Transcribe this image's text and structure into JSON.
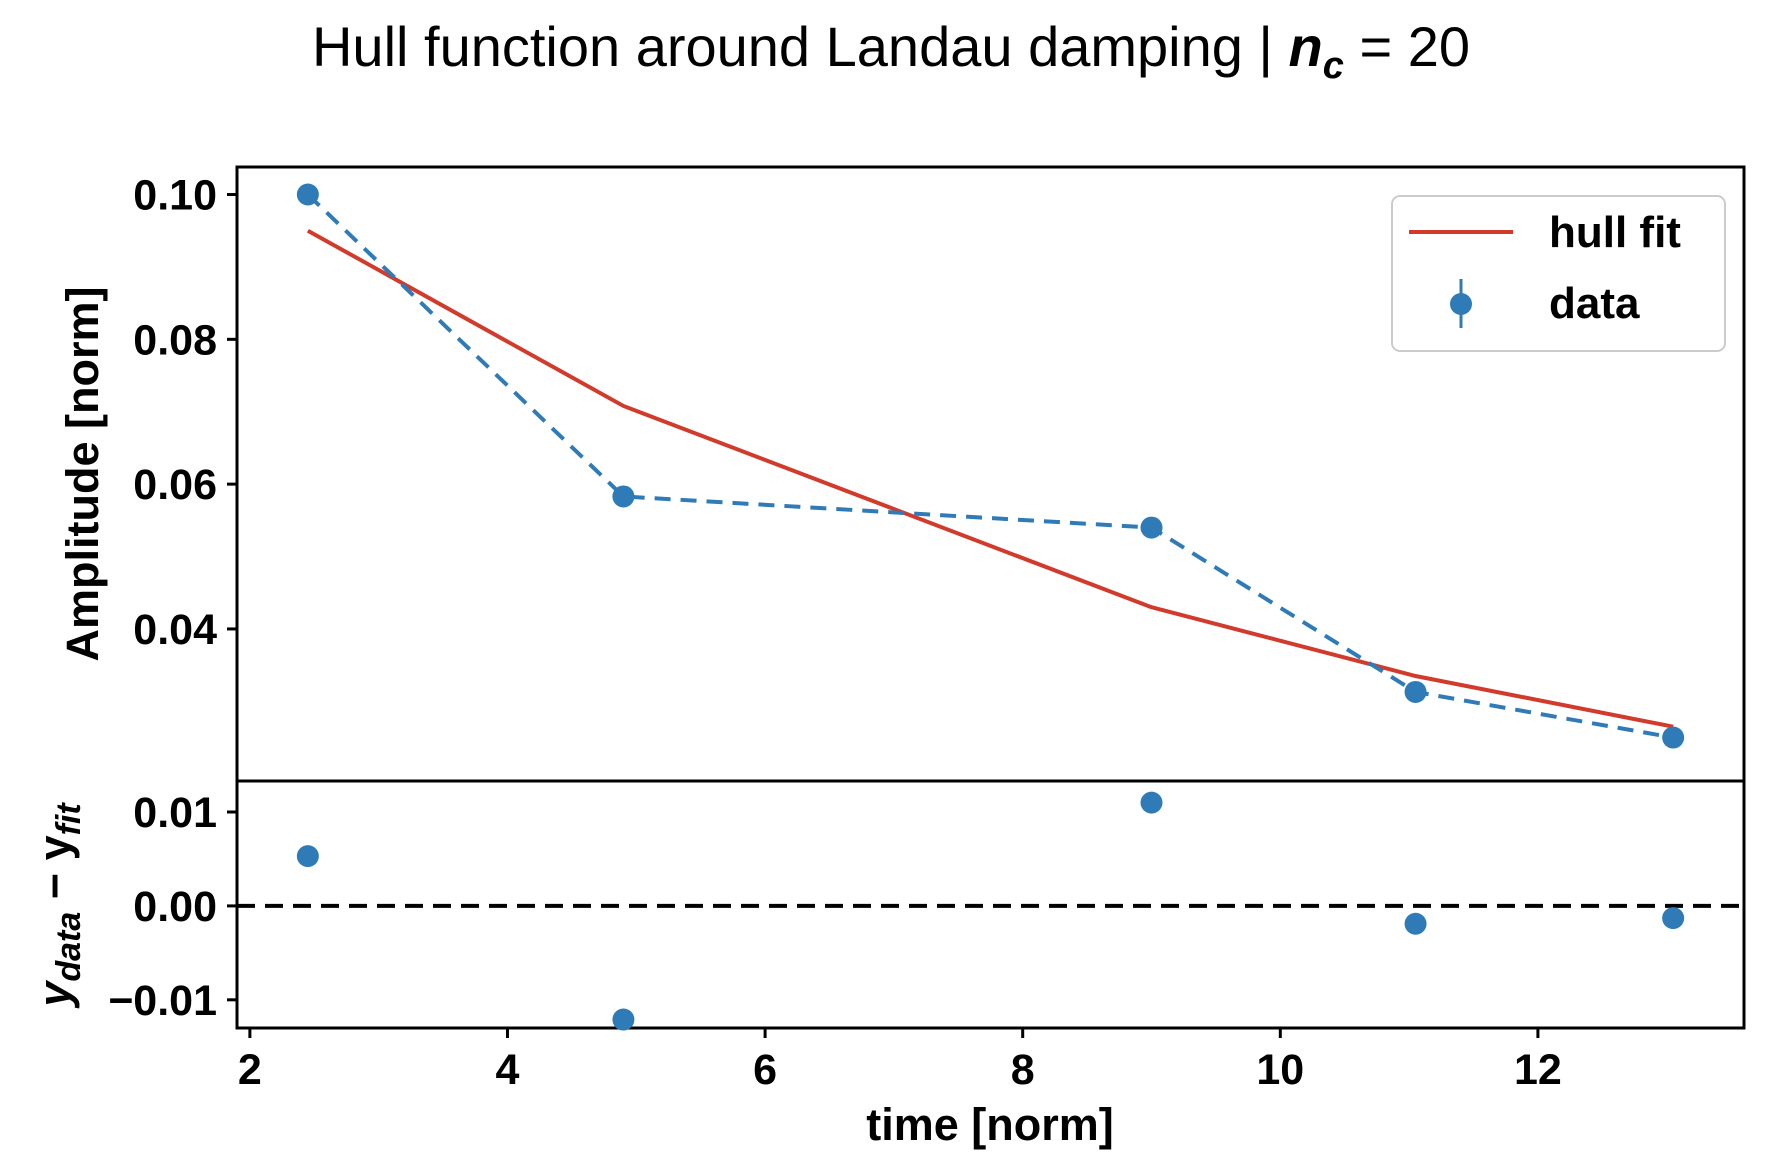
{
  "chart_data": {
    "type": "line",
    "title_prefix": "Hull function around Landau damping | ",
    "title_var_main": "n",
    "title_var_sub": "c",
    "title_suffix": " = 20",
    "xlabel": "time [norm]",
    "xlim": [
      1.9,
      13.6
    ],
    "x_ticks": [
      2,
      4,
      6,
      8,
      10,
      12
    ],
    "colors": {
      "fit": "#d23a2b",
      "data": "#2f7bb8",
      "axis": "#000000"
    },
    "top_panel": {
      "ylabel": "Amplitude [norm]",
      "ylim": [
        0.019,
        0.1038
      ],
      "y_ticks": [
        0.04,
        0.06,
        0.08,
        0.1
      ],
      "y_tick_labels": [
        "0.04",
        "0.06",
        "0.08",
        "0.10"
      ],
      "series": [
        {
          "name": "hull fit",
          "kind": "line",
          "x": [
            2.45,
            4.9,
            9.0,
            11.05,
            13.05
          ],
          "y": [
            0.095,
            0.0708,
            0.043,
            0.0335,
            0.0265
          ]
        },
        {
          "name": "data",
          "kind": "errorbar-dashed",
          "x": [
            2.45,
            4.9,
            9.0,
            11.05,
            13.05
          ],
          "y": [
            0.1,
            0.0583,
            0.054,
            0.0313,
            0.025
          ]
        }
      ],
      "legend": {
        "position": "top-right",
        "entries": [
          "hull fit",
          "data"
        ]
      }
    },
    "bottom_panel": {
      "ylabel_main": "y",
      "ylabel_sub1": "data",
      "ylabel_mid": " − y",
      "ylabel_sub2": "fit",
      "ylim": [
        -0.013,
        0.0133
      ],
      "y_ticks": [
        -0.01,
        0.0,
        0.01
      ],
      "y_tick_labels": [
        "−0.01",
        "0.00",
        "0.01"
      ],
      "zero_line": 0.0,
      "residuals": {
        "x": [
          2.45,
          4.9,
          9.0,
          11.05,
          13.05
        ],
        "y": [
          0.0053,
          -0.0121,
          0.011,
          -0.0019,
          -0.0013
        ]
      }
    }
  }
}
